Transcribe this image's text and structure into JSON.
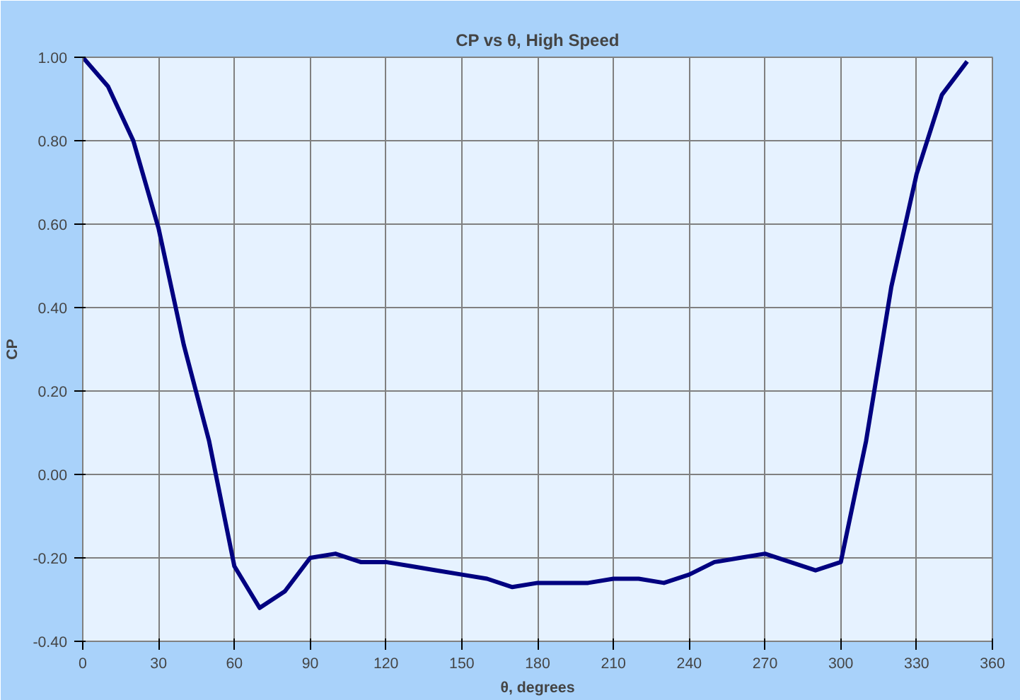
{
  "chart_data": {
    "type": "line",
    "title": "CP vs θ, High Speed",
    "xlabel": "θ, degrees",
    "ylabel": "CP",
    "x": [
      0,
      10,
      20,
      30,
      40,
      50,
      60,
      70,
      80,
      90,
      100,
      110,
      120,
      130,
      140,
      150,
      160,
      170,
      180,
      190,
      200,
      210,
      220,
      230,
      240,
      250,
      260,
      270,
      280,
      290,
      300,
      310,
      320,
      330,
      340,
      350
    ],
    "series": [
      {
        "color": "#000080",
        "values": [
          1.0,
          0.93,
          0.8,
          0.59,
          0.31,
          0.08,
          -0.22,
          -0.32,
          -0.28,
          -0.2,
          -0.19,
          -0.21,
          -0.21,
          -0.22,
          -0.23,
          -0.24,
          -0.25,
          -0.27,
          -0.26,
          -0.26,
          -0.26,
          -0.25,
          -0.25,
          -0.26,
          -0.24,
          -0.21,
          -0.2,
          -0.19,
          -0.21,
          -0.23,
          -0.21,
          0.08,
          0.45,
          0.72,
          0.91,
          0.99
        ]
      }
    ],
    "xlim": [
      0,
      360
    ],
    "xticks": [
      0,
      30,
      60,
      90,
      120,
      150,
      180,
      210,
      240,
      270,
      300,
      330,
      360
    ],
    "ylim": [
      -0.4,
      1.0
    ],
    "yticks": [
      {
        "value": -0.4,
        "label": "-0.40"
      },
      {
        "value": -0.2,
        "label": "-0.20"
      },
      {
        "value": 0,
        "label": "0.00"
      },
      {
        "value": 0.2,
        "label": "0.20"
      },
      {
        "value": 0.4,
        "label": "0.40"
      },
      {
        "value": 0.6,
        "label": "0.60"
      },
      {
        "value": 0.8,
        "label": "0.80"
      },
      {
        "value": 1.0,
        "label": "1.00"
      }
    ],
    "grid": true,
    "marker": "none",
    "line_style": "solid"
  }
}
